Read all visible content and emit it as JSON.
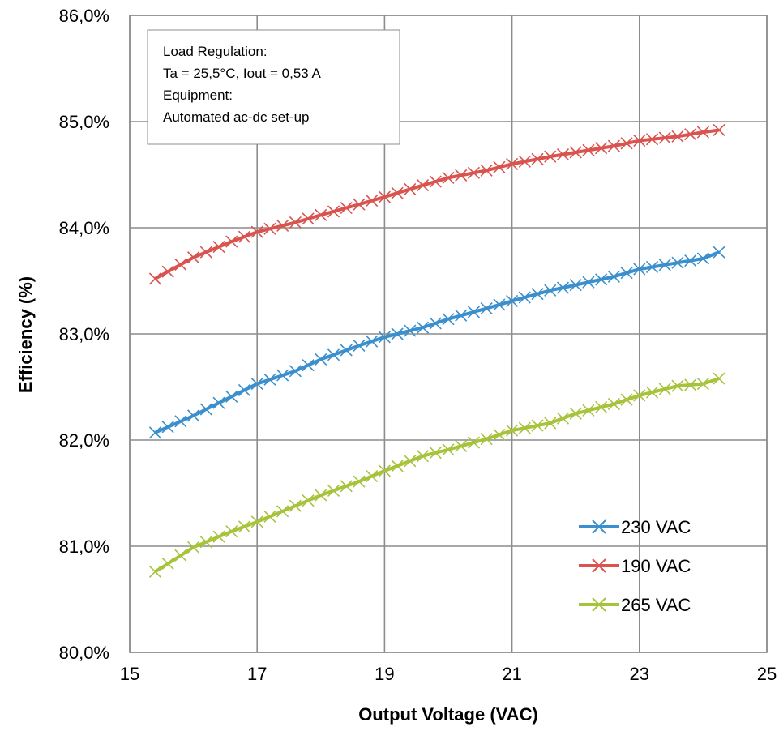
{
  "chart_data": {
    "type": "line",
    "title": "",
    "xlabel": "Output Voltage (VAC)",
    "ylabel": "Efficiency (%)",
    "xlim": [
      15,
      25
    ],
    "ylim": [
      80,
      86
    ],
    "x_ticks": [
      "15",
      "17",
      "19",
      "21",
      "23",
      "25"
    ],
    "y_ticks": [
      "80,0%",
      "81,0%",
      "82,0%",
      "83,0%",
      "84,0%",
      "85,0%",
      "86,0%"
    ],
    "grid": true,
    "legend_position": "bottom-right",
    "annotation": [
      "Load Regulation:",
      "Ta = 25,5°C, Iout = 0,53 A",
      "Equipment:",
      "Automated ac-dc set-up"
    ],
    "series": [
      {
        "name": "230 VAC",
        "color": "#3a8fcc",
        "marker": "x",
        "x": [
          15.4,
          16.0,
          16.6,
          17.0,
          17.6,
          18.0,
          18.6,
          19.0,
          19.6,
          20.0,
          20.6,
          21.0,
          21.6,
          22.0,
          22.6,
          23.0,
          23.6,
          24.0,
          24.25
        ],
        "y": [
          82.07,
          82.23,
          82.41,
          82.53,
          82.65,
          82.76,
          82.89,
          82.97,
          83.06,
          83.14,
          83.24,
          83.31,
          83.41,
          83.46,
          83.54,
          83.61,
          83.67,
          83.71,
          83.77
        ]
      },
      {
        "name": "190 VAC",
        "color": "#d9534f",
        "marker": "x",
        "x": [
          15.4,
          16.0,
          16.6,
          17.0,
          17.6,
          18.0,
          18.6,
          19.0,
          19.6,
          20.0,
          20.6,
          21.0,
          21.6,
          22.0,
          22.6,
          23.0,
          23.6,
          24.0,
          24.25
        ],
        "y": [
          83.52,
          83.72,
          83.87,
          83.96,
          84.05,
          84.12,
          84.22,
          84.29,
          84.4,
          84.47,
          84.54,
          84.6,
          84.67,
          84.71,
          84.77,
          84.82,
          84.86,
          84.9,
          84.92
        ]
      },
      {
        "name": "265 VAC",
        "color": "#a6c33c",
        "marker": "x",
        "x": [
          15.4,
          16.0,
          16.6,
          17.0,
          17.6,
          18.0,
          18.6,
          19.0,
          19.6,
          20.0,
          20.6,
          21.0,
          21.6,
          22.0,
          22.6,
          23.0,
          23.6,
          24.0,
          24.25
        ],
        "y": [
          80.76,
          80.99,
          81.14,
          81.23,
          81.38,
          81.48,
          81.61,
          81.71,
          81.85,
          81.91,
          82.01,
          82.09,
          82.16,
          82.25,
          82.34,
          82.42,
          82.51,
          82.53,
          82.58
        ]
      }
    ]
  }
}
